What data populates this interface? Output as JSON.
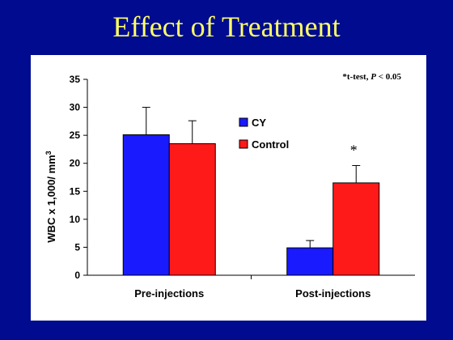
{
  "slide": {
    "title": "Effect of Treatment"
  },
  "colors": {
    "background": "#000b8f",
    "title": "#ffff66",
    "CY": "#1a1aff",
    "Control": "#ff1a1a"
  },
  "chart_data": {
    "type": "bar",
    "title": "",
    "categories": [
      "Pre-injections",
      "Post-injections"
    ],
    "series": [
      {
        "name": "CY",
        "values": [
          25.1,
          4.9
        ],
        "errors": [
          4.9,
          1.3
        ],
        "color": "#1a1aff"
      },
      {
        "name": "Control",
        "values": [
          23.5,
          16.5
        ],
        "errors": [
          4.1,
          3.1
        ],
        "color": "#ff1a1a"
      }
    ],
    "ylabel_prefix": "WBC x 1,000/ mm",
    "ylabel_sup": "3",
    "xlabel": "",
    "ylim": [
      0,
      35
    ],
    "yticks": [
      0,
      5,
      10,
      15,
      20,
      25,
      30,
      35
    ],
    "grid": false,
    "legend": "inside-center",
    "note": {
      "prefix": "*t-test, ",
      "italic": "P",
      "suffix": " < 0.05"
    },
    "significance": {
      "series": "Control",
      "category": "Post-injections",
      "marker": "*"
    }
  }
}
